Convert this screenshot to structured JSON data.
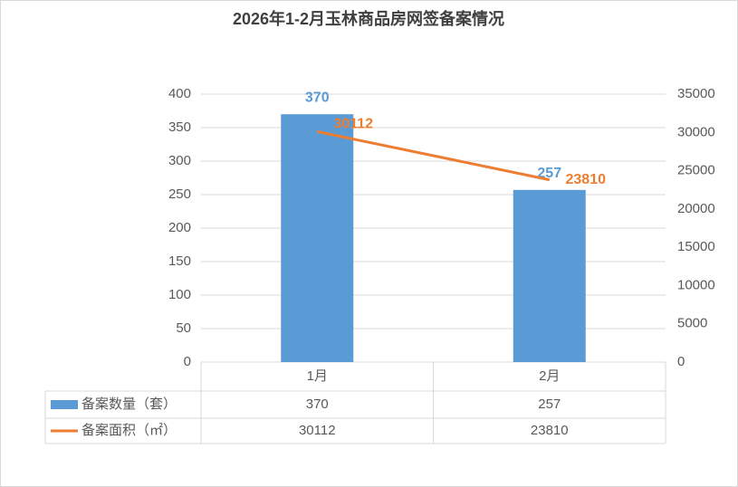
{
  "chart_data": {
    "type": "bar",
    "title": "2026年1-2月玉林商品房网签备案情况",
    "categories": [
      "1月",
      "2月"
    ],
    "series": [
      {
        "name": "备案数量（套）",
        "color": "#5b9bd5",
        "type": "bar",
        "values": [
          370,
          257
        ]
      },
      {
        "name": "备案面积（㎡）",
        "color": "#ed7d31",
        "type": "line",
        "axis": "y2",
        "values": [
          30112,
          23810
        ]
      }
    ],
    "ylim": [
      0,
      400
    ],
    "yticks": [
      0,
      50,
      100,
      150,
      200,
      250,
      300,
      350,
      400
    ],
    "y2lim": [
      0,
      35000
    ],
    "y2ticks": [
      0,
      5000,
      10000,
      15000,
      20000,
      25000,
      30000,
      35000
    ],
    "grid": true,
    "legend": "table"
  }
}
